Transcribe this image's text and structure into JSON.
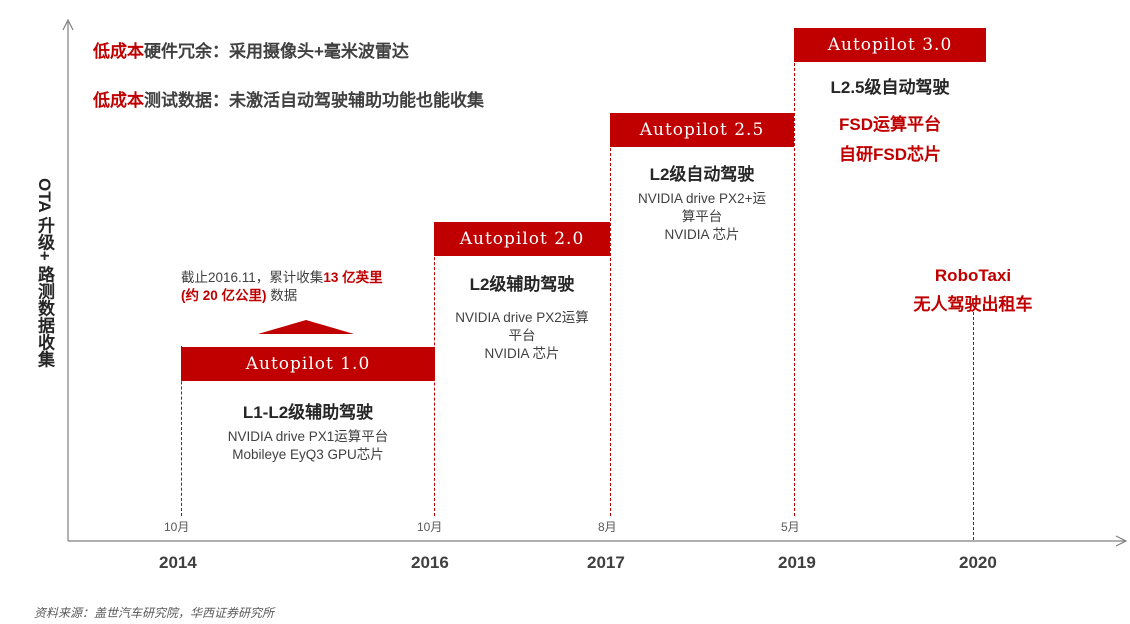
{
  "bullets": [
    {
      "highlight": "低成本",
      "text": "硬件冗余：采用摄像头+毫米波雷达"
    },
    {
      "highlight": "低成本",
      "text": "测试数据：未激活自动驾驶辅助功能也能收集"
    }
  ],
  "y_axis_label": "OTA 升级+ 路测数据收集",
  "milestones": {
    "ap1": {
      "badge": "Autopilot 1.0",
      "level": "L1-L2级辅助驾驶",
      "platform_1": "NVIDIA drive PX1运算平台",
      "platform_2": "Mobileye EyQ3 GPU芯片",
      "month": "10月"
    },
    "ap2": {
      "badge": "Autopilot 2.0",
      "level": "L2级辅助驾驶",
      "platform_1": "NVIDIA drive PX2运算",
      "platform_2": "平台",
      "platform_3": "NVIDIA 芯片",
      "month": "10月"
    },
    "ap25": {
      "badge": "Autopilot 2.5",
      "level": "L2级自动驾驶",
      "platform_1": "NVIDIA drive PX2+运",
      "platform_2": "算平台",
      "platform_3": "NVIDIA 芯片",
      "month": "8月"
    },
    "ap3": {
      "badge": "Autopilot 3.0",
      "level": "L2.5级自动驾驶",
      "feature_1": "FSD运算平台",
      "feature_2": "自研FSD芯片",
      "month": "5月"
    },
    "robotaxi": {
      "line_1": "RoboTaxi",
      "line_2": "无人驾驶出租车"
    }
  },
  "note": {
    "prefix": "截止2016.11，累计收集",
    "highlight_1": "13 亿英里",
    "highlight_2": "(约 20 亿公里)",
    "suffix": " 数据"
  },
  "years": [
    "2014",
    "2016",
    "2017",
    "2019",
    "2020"
  ],
  "source": "资料来源：盖世汽车研究院，华西证券研究所",
  "colors": {
    "accent": "#c00000",
    "text": "#404040",
    "axis": "#595959"
  }
}
